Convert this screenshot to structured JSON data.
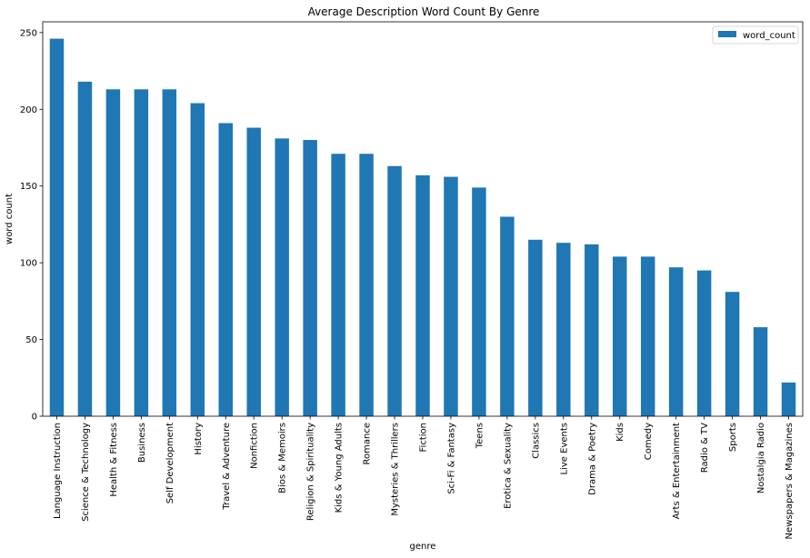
{
  "chart_data": {
    "type": "bar",
    "title": "Average Description Word Count By Genre",
    "xlabel": "genre",
    "ylabel": "word count",
    "ylim": [
      0,
      257
    ],
    "yticks": [
      0,
      50,
      100,
      150,
      200,
      250
    ],
    "grid": false,
    "legend": "top-right",
    "categories": [
      "Language Instruction",
      "Science & Technology",
      "Health & Fitness",
      "Business",
      "Self Development",
      "History",
      "Travel & Adventure",
      "Nonfiction",
      "Bios & Memoirs",
      "Religion & Spirituality",
      "Kids & Young Adults",
      "Romance",
      "Mysteries & Thrillers",
      "Fiction",
      "Sci-Fi & Fantasy",
      "Teens",
      "Erotica & Sexuality",
      "Classics",
      "Live Events",
      "Drama & Poetry",
      "Kids",
      "Comedy",
      "Arts & Entertainment",
      "Radio & TV",
      "Sports",
      "Nostalgia Radio",
      "Newspapers & Magazines"
    ],
    "series": [
      {
        "name": "word_count",
        "color": "#1f77b4",
        "values": [
          246,
          218,
          213,
          213,
          213,
          204,
          191,
          188,
          181,
          180,
          171,
          171,
          163,
          157,
          156,
          149,
          130,
          115,
          113,
          112,
          104,
          104,
          97,
          95,
          81,
          58,
          22
        ]
      }
    ]
  }
}
